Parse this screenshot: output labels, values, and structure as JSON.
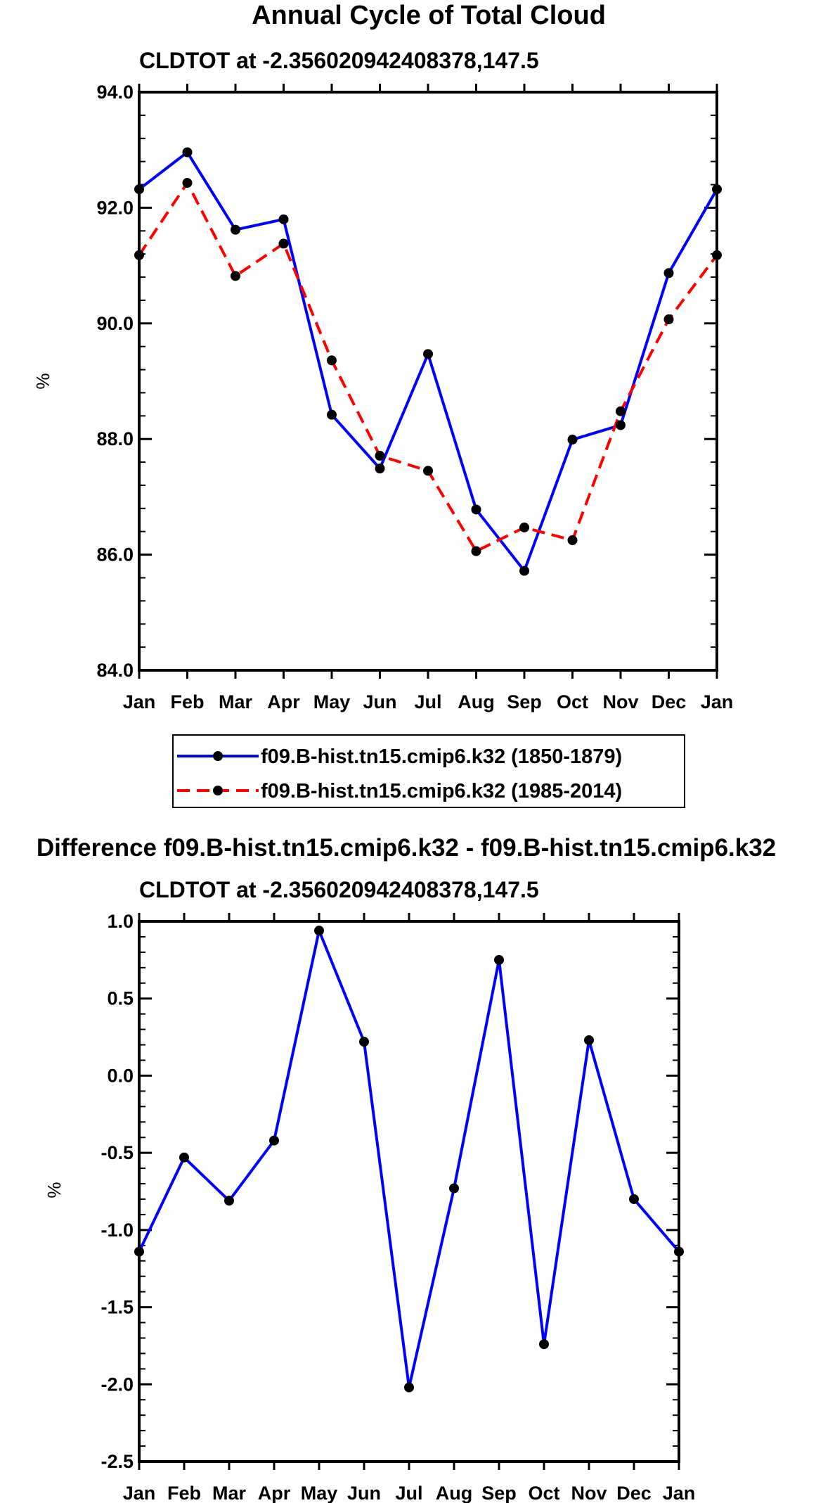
{
  "chart_data": [
    {
      "type": "line",
      "title": "Annual Cycle of Total Cloud",
      "subtitle": "CLDTOT at -2.356020942408378,147.5",
      "xlabel": "",
      "ylabel": "%",
      "categories": [
        "Jan",
        "Feb",
        "Mar",
        "Apr",
        "May",
        "Jun",
        "Jul",
        "Aug",
        "Sep",
        "Oct",
        "Nov",
        "Dec",
        "Jan"
      ],
      "ylim": [
        84.0,
        94.0
      ],
      "yticks": [
        "84.0",
        "86.0",
        "88.0",
        "90.0",
        "92.0",
        "94.0"
      ],
      "series": [
        {
          "name": "f09.B-hist.tn15.cmip6.k32 (1850-1879)",
          "color": "#0000ff",
          "dash": "solid",
          "values": [
            92.32,
            92.96,
            91.62,
            91.8,
            88.42,
            87.49,
            89.47,
            86.78,
            85.72,
            87.99,
            88.24,
            90.87,
            92.32
          ]
        },
        {
          "name": "f09.B-hist.tn15.cmip6.k32 (1985-2014)",
          "color": "#ff0000",
          "dash": "dashed",
          "values": [
            91.18,
            92.43,
            90.82,
            91.38,
            89.36,
            87.71,
            87.45,
            86.06,
            86.47,
            86.25,
            88.48,
            90.07,
            91.18
          ]
        }
      ],
      "legend": "below"
    },
    {
      "type": "line",
      "title": "Difference f09.B-hist.tn15.cmip6.k32 - f09.B-hist.tn15.cmip6.k32",
      "subtitle": "CLDTOT at -2.356020942408378,147.5",
      "xlabel": "",
      "ylabel": "%",
      "categories": [
        "Jan",
        "Feb",
        "Mar",
        "Apr",
        "May",
        "Jun",
        "Jul",
        "Aug",
        "Sep",
        "Oct",
        "Nov",
        "Dec",
        "Jan"
      ],
      "ylim": [
        -2.5,
        1.0
      ],
      "yticks": [
        "-2.5",
        "-2.0",
        "-1.5",
        "-1.0",
        "-0.5",
        "0.0",
        "0.5",
        "1.0"
      ],
      "series": [
        {
          "name": "Difference",
          "color": "#0000ff",
          "dash": "solid",
          "values": [
            -1.14,
            -0.53,
            -0.81,
            -0.42,
            0.94,
            0.22,
            -2.02,
            -0.73,
            0.75,
            -1.74,
            0.23,
            -0.8,
            -1.14
          ]
        }
      ]
    }
  ]
}
